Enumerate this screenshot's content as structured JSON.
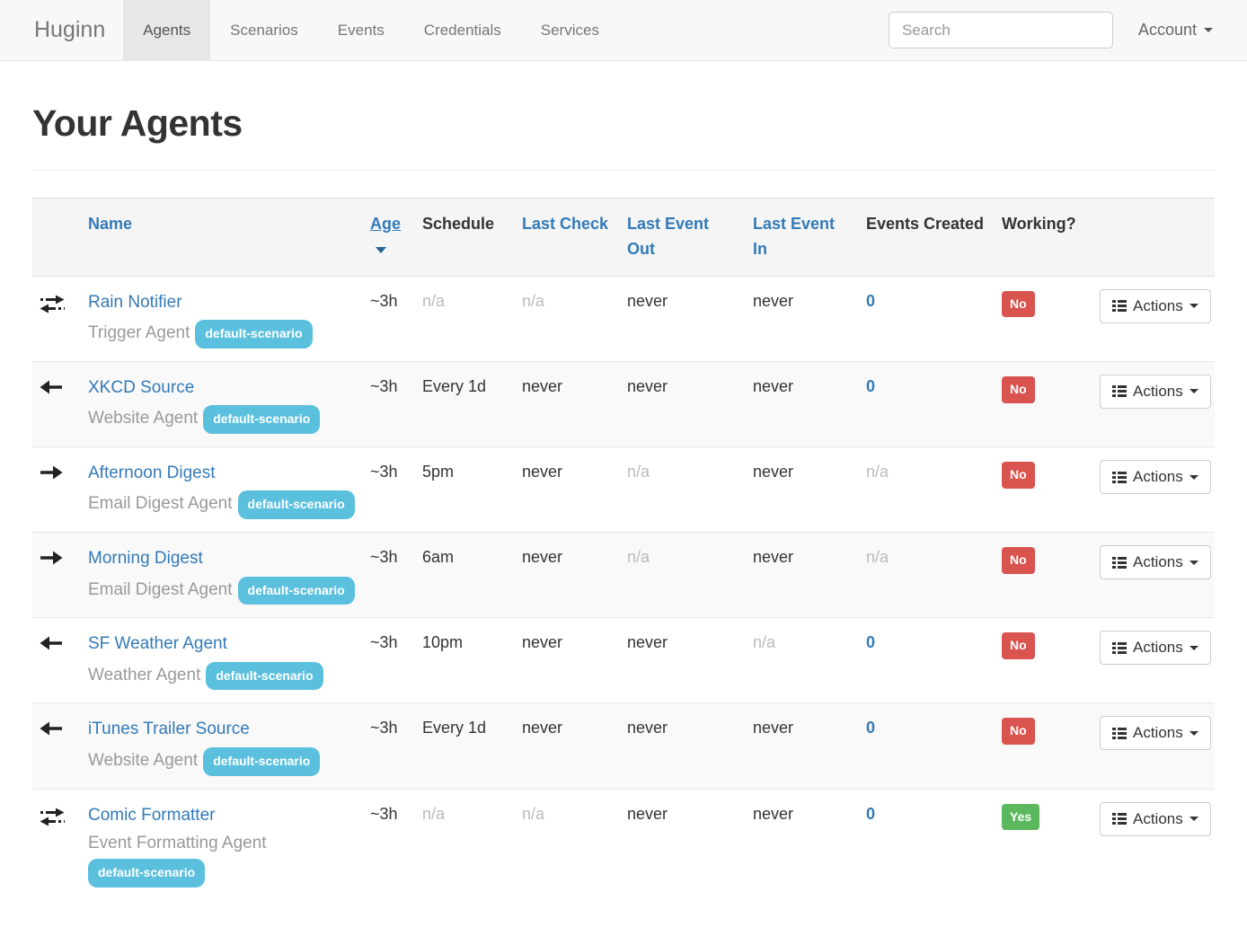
{
  "navbar": {
    "brand": "Huginn",
    "items": [
      {
        "label": "Agents",
        "active": true
      },
      {
        "label": "Scenarios",
        "active": false
      },
      {
        "label": "Events",
        "active": false
      },
      {
        "label": "Credentials",
        "active": false
      },
      {
        "label": "Services",
        "active": false
      }
    ],
    "search_placeholder": "Search",
    "account_label": "Account"
  },
  "page": {
    "title": "Your Agents"
  },
  "colors": {
    "link_blue": "#337ab7",
    "scenario_badge_blue": "#5bc0de",
    "working_no_red": "#d9534f",
    "working_yes_green": "#5cb85c"
  },
  "table": {
    "actions_label": "Actions",
    "headers": [
      {
        "label": ""
      },
      {
        "label": "Name",
        "style": "link"
      },
      {
        "label": "Age",
        "style": "link",
        "sorted": "desc"
      },
      {
        "label": "Schedule",
        "style": "plain"
      },
      {
        "label": "Last Check",
        "style": "link"
      },
      {
        "label": "Last Event Out",
        "style": "link"
      },
      {
        "label": "Last Event In",
        "style": "link"
      },
      {
        "label": "Events Created",
        "style": "plain"
      },
      {
        "label": "Working?",
        "style": "plain"
      },
      {
        "label": ""
      }
    ],
    "rows": [
      {
        "icon": "exchange-icon",
        "name": "Rain Notifier",
        "type": "Trigger Agent",
        "badge": "default-scenario",
        "age": "~3h",
        "schedule": "n/a",
        "last_check": "n/a",
        "last_event_out": "never",
        "last_event_in": "never",
        "events_created": "0",
        "working": "No",
        "working_variant": "danger"
      },
      {
        "icon": "arrow-left-icon",
        "name": "XKCD Source",
        "type": "Website Agent",
        "badge": "default-scenario",
        "age": "~3h",
        "schedule": "Every 1d",
        "last_check": "never",
        "last_event_out": "never",
        "last_event_in": "never",
        "events_created": "0",
        "working": "No",
        "working_variant": "danger"
      },
      {
        "icon": "arrow-right-icon",
        "name": "Afternoon Digest",
        "type": "Email Digest Agent",
        "badge": "default-scenario",
        "age": "~3h",
        "schedule": "5pm",
        "last_check": "never",
        "last_event_out": "n/a",
        "last_event_in": "never",
        "events_created": "n/a",
        "working": "No",
        "working_variant": "danger"
      },
      {
        "icon": "arrow-right-icon",
        "name": "Morning Digest",
        "type": "Email Digest Agent",
        "badge": "default-scenario",
        "age": "~3h",
        "schedule": "6am",
        "last_check": "never",
        "last_event_out": "n/a",
        "last_event_in": "never",
        "events_created": "n/a",
        "working": "No",
        "working_variant": "danger"
      },
      {
        "icon": "arrow-left-icon",
        "name": "SF Weather Agent",
        "type": "Weather Agent",
        "badge": "default-scenario",
        "age": "~3h",
        "schedule": "10pm",
        "last_check": "never",
        "last_event_out": "never",
        "last_event_in": "n/a",
        "events_created": "0",
        "working": "No",
        "working_variant": "danger"
      },
      {
        "icon": "arrow-left-icon",
        "name": "iTunes Trailer Source",
        "type": "Website Agent",
        "badge": "default-scenario",
        "age": "~3h",
        "schedule": "Every 1d",
        "last_check": "never",
        "last_event_out": "never",
        "last_event_in": "never",
        "events_created": "0",
        "working": "No",
        "working_variant": "danger"
      },
      {
        "icon": "exchange-icon",
        "name": "Comic Formatter",
        "type": "Event Formatting Agent",
        "badge": "default-scenario",
        "age": "~3h",
        "schedule": "n/a",
        "last_check": "n/a",
        "last_event_out": "never",
        "last_event_in": "never",
        "events_created": "0",
        "working": "Yes",
        "working_variant": "success"
      }
    ]
  }
}
